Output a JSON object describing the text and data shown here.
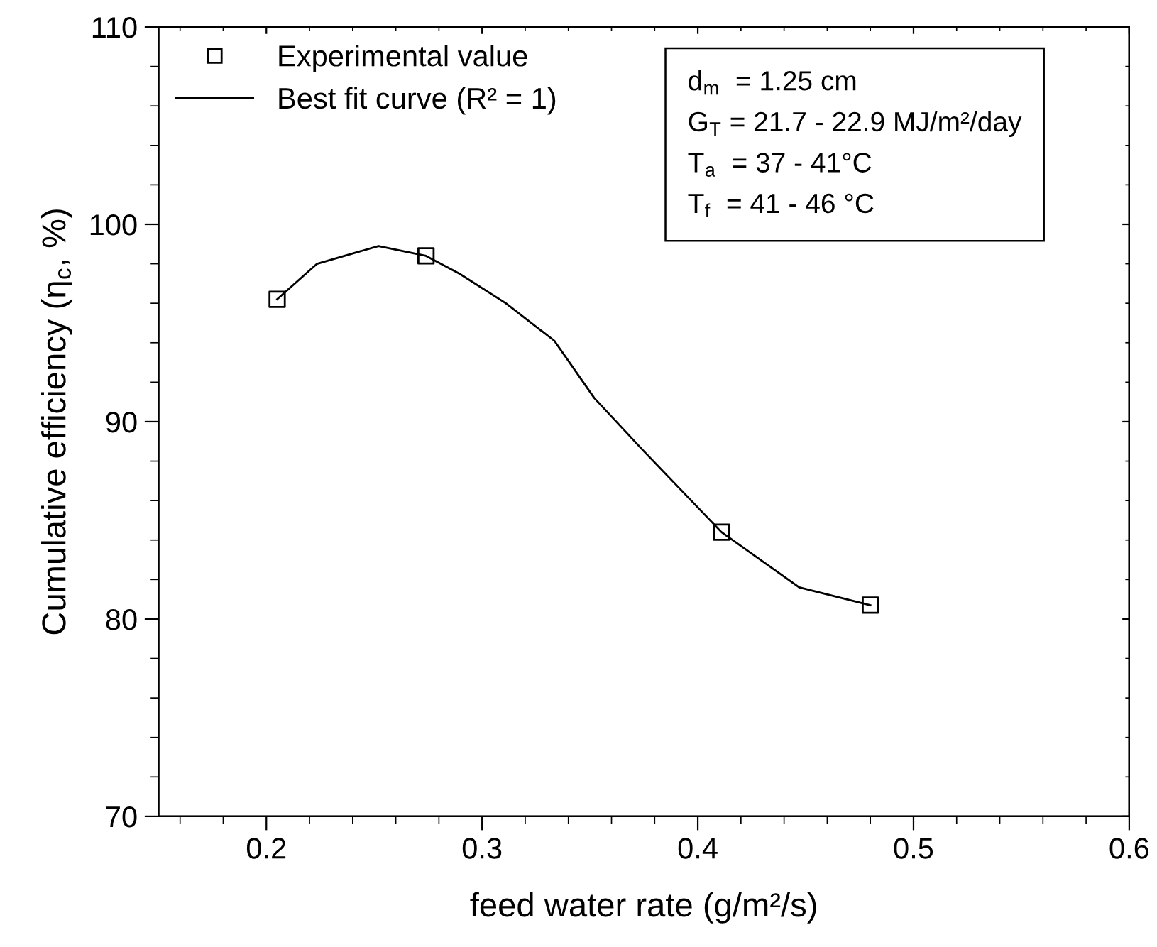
{
  "chart_data": {
    "type": "scatter",
    "xlabel": "feed water rate (g/m²/s)",
    "ylabel": "Cumulative efficiency (η$_{c}$, %)",
    "xlim": [
      0.15,
      0.6
    ],
    "xticks": [
      0.2,
      0.3,
      0.4,
      0.5,
      0.6
    ],
    "ylim": [
      70,
      110
    ],
    "yticks": [
      70,
      80,
      90,
      100,
      110
    ],
    "grid": false,
    "legend": "top left",
    "series": [
      {
        "name": "Experimental value",
        "color": "#000000",
        "marker": "square",
        "x": [
          0.205,
          0.274,
          0.411,
          0.48
        ],
        "values": [
          96.2,
          98.4,
          84.4,
          80.7
        ]
      },
      {
        "name": "Best fit curve (R² = 1)",
        "type": "line",
        "color": "#000000",
        "line_style": "solid",
        "marker": "none",
        "x": [
          0.205,
          0.2235,
          0.252,
          0.274,
          0.2895,
          0.311,
          0.3335,
          0.352,
          0.375,
          0.411,
          0.447,
          0.48
        ],
        "values": [
          96.2,
          98.0,
          98.9,
          98.4,
          97.5,
          96.0,
          94.1,
          91.2,
          88.5,
          84.4,
          81.6,
          80.7
        ]
      }
    ],
    "annotations": [
      "d$_{m}$  = 1.25 cm",
      "G$_{T}$ = 21.7 - 22.9 MJ/m²/day",
      "T$_{a}$  = 37 - 41°C",
      "T$_{f}$  = 41 - 46 °C"
    ]
  }
}
